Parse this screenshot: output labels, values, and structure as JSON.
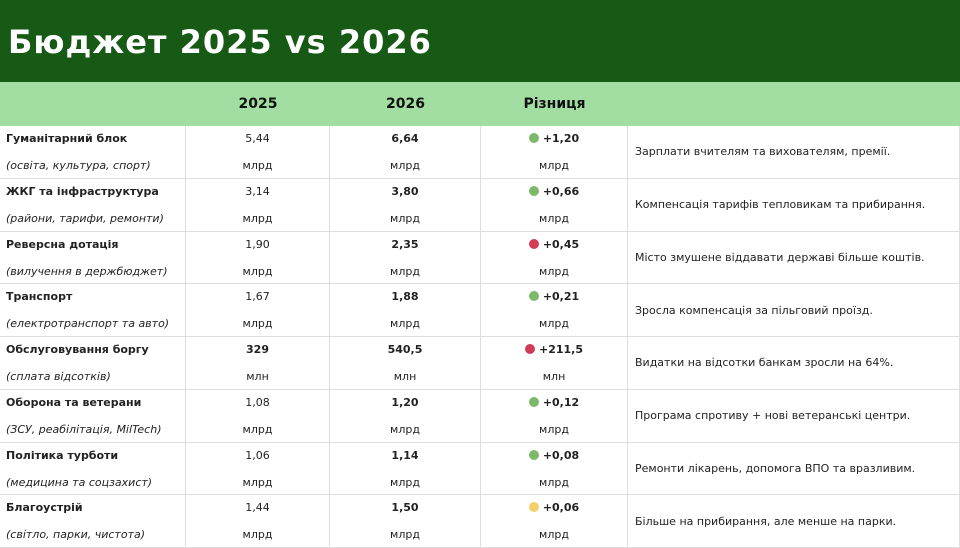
{
  "header": {
    "title": "Бюджет 2025 vs 2026"
  },
  "table": {
    "columns": [
      "",
      "2025",
      "2026",
      "Різниця",
      ""
    ],
    "rows": [
      {
        "name": "Гуманітарний блок",
        "subtitle": "(освіта, культура, спорт)",
        "v2025": "5,44",
        "v2026": "6,64",
        "diff": "+1,20",
        "unit": "млрд",
        "status": "#7cb96a",
        "note": "Зарплати вчителям та вихователям, премії."
      },
      {
        "name": "ЖКГ та інфраструктура",
        "subtitle": "(райони, тарифи, ремонти)",
        "v2025": "3,14",
        "v2026": "3,80",
        "diff": "+0,66",
        "unit": "млрд",
        "status": "#7cb96a",
        "note": "Компенсація тарифів тепловикам та прибирання."
      },
      {
        "name": "Реверсна дотація",
        "subtitle": "(вилучення в держбюджет)",
        "v2025": "1,90",
        "v2026": "2,35",
        "diff": "+0,45",
        "unit": "млрд",
        "status": "#d33c55",
        "note": "Місто змушене віддавати державі більше коштів."
      },
      {
        "name": "Транспорт",
        "subtitle": "(електротранспорт та авто)",
        "v2025": "1,67",
        "v2026": "1,88",
        "diff": "+0,21",
        "unit": "млрд",
        "status": "#7cb96a",
        "note": "Зросла компенсація за пільговий проїзд."
      },
      {
        "name": "Обслуговування боргу",
        "subtitle": "(сплата відсотків)",
        "v2025": "329",
        "v2026": "540,5",
        "diff": "+211,5",
        "unit": "млн",
        "status": "#d33c55",
        "note": "Видатки на відсотки банкам зросли на 64%."
      },
      {
        "name": "Оборона та ветерани",
        "subtitle": "(ЗСУ, реабілітація, MilTech)",
        "v2025": "1,08",
        "v2026": "1,20",
        "diff": "+0,12",
        "unit": "млрд",
        "status": "#7cb96a",
        "note": "Програма спротиву + нові ветеранські центри."
      },
      {
        "name": "Політика турботи",
        "subtitle": "(медицина та соцзахист)",
        "v2025": "1,06",
        "v2026": "1,14",
        "diff": "+0,08",
        "unit": "млрд",
        "status": "#7cb96a",
        "note": "Ремонти лікарень, допомога ВПО та вразливим."
      },
      {
        "name": "Благоустрій",
        "subtitle": "(світло, парки, чистота)",
        "v2025": "1,44",
        "v2026": "1,50",
        "diff": "+0,06",
        "unit": "млрд",
        "status": "#f2cf6a",
        "note": "Більше на прибирання, але менше на парки."
      }
    ]
  }
}
